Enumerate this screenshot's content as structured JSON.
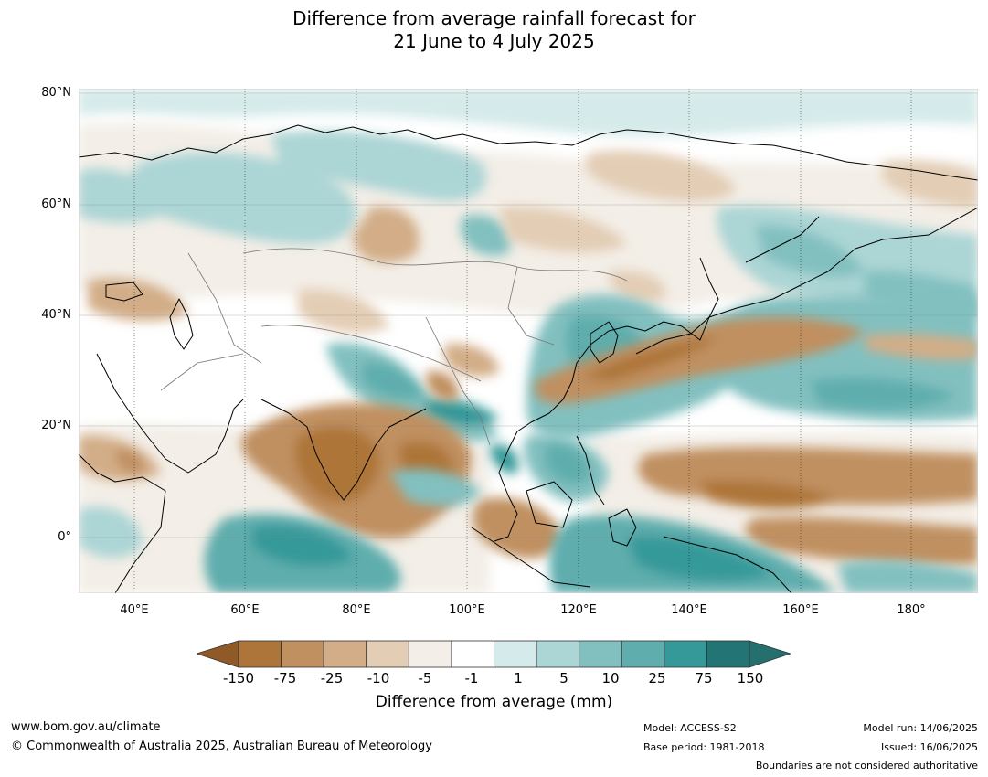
{
  "title": {
    "line1": "Difference from average rainfall forecast for",
    "line2": "21 June to 4 July 2025"
  },
  "map": {
    "lat_labels": [
      "80°N",
      "60°N",
      "40°N",
      "20°N",
      "0°"
    ],
    "lon_labels": [
      "40°E",
      "60°E",
      "80°E",
      "100°E",
      "120°E",
      "140°E",
      "160°E",
      "180°"
    ],
    "extent": {
      "lon": [
        30,
        192
      ],
      "lat": [
        -10,
        81
      ]
    }
  },
  "colorbar": {
    "label": "Difference from average (mm)",
    "ticks": [
      "-150",
      "-75",
      "-25",
      "-10",
      "-5",
      "-1",
      "1",
      "5",
      "10",
      "25",
      "75",
      "150"
    ],
    "colors": [
      "#ad7539",
      "#c09060",
      "#d2ad87",
      "#e3cdb5",
      "#f3eee7",
      "#ffffff",
      "#d5eaea",
      "#acd5d5",
      "#82c0c0",
      "#5fadad",
      "#359999",
      "#237474"
    ],
    "extend_low_color": "#8f5a27",
    "extend_high_color": "#256f6f"
  },
  "footer": {
    "website": "www.bom.gov.au/climate",
    "copyright": "© Commonwealth of Australia 2025, Australian Bureau of Meteorology",
    "model": "Model: ACCESS-S2",
    "base_period": "Base period: 1981-2018",
    "model_run": "Model run: 14/06/2025",
    "issued": "Issued: 16/06/2025",
    "disclaimer": "Boundaries are not considered authoritative"
  }
}
